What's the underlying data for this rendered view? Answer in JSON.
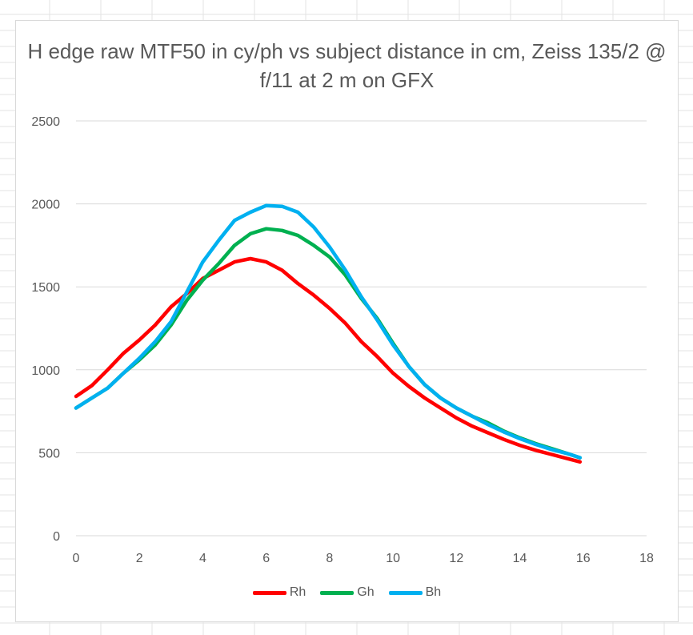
{
  "chart_data": {
    "type": "line",
    "title": "H edge raw MTF50 in cy/ph vs subject distance in cm, Zeiss 135/2 @ f/11 at 2 m on GFX",
    "xlabel": "",
    "ylabel": "",
    "xlim": [
      0,
      18
    ],
    "ylim": [
      0,
      2500
    ],
    "xticks": [
      0,
      2,
      4,
      6,
      8,
      10,
      12,
      14,
      16,
      18
    ],
    "yticks": [
      0,
      500,
      1000,
      1500,
      2000,
      2500
    ],
    "grid": "horizontal",
    "legend": "bottom",
    "series": [
      {
        "name": "Rh",
        "color": "#ff0000",
        "x": [
          0,
          0.5,
          1,
          1.5,
          2,
          2.5,
          3,
          3.5,
          4,
          4.5,
          5,
          5.5,
          6,
          6.5,
          7,
          7.5,
          8,
          8.5,
          9,
          9.5,
          10,
          10.5,
          11,
          11.5,
          12,
          12.5,
          13,
          13.5,
          14,
          14.5,
          15,
          15.5,
          15.9
        ],
        "y": [
          840,
          905,
          1000,
          1100,
          1180,
          1270,
          1380,
          1460,
          1550,
          1600,
          1650,
          1670,
          1650,
          1600,
          1520,
          1450,
          1370,
          1280,
          1170,
          1080,
          980,
          900,
          830,
          770,
          710,
          660,
          620,
          580,
          545,
          515,
          490,
          465,
          445
        ]
      },
      {
        "name": "Gh",
        "color": "#00b050",
        "x": [
          0,
          0.5,
          1,
          1.5,
          2,
          2.5,
          3,
          3.5,
          4,
          4.5,
          5,
          5.5,
          6,
          6.5,
          7,
          7.5,
          8,
          8.5,
          9,
          9.5,
          10,
          10.5,
          11,
          11.5,
          12,
          12.5,
          13,
          13.5,
          14,
          14.5,
          15,
          15.5,
          15.9
        ],
        "y": [
          770,
          830,
          890,
          980,
          1060,
          1150,
          1270,
          1420,
          1540,
          1640,
          1750,
          1820,
          1850,
          1840,
          1810,
          1750,
          1680,
          1570,
          1430,
          1310,
          1160,
          1020,
          910,
          830,
          770,
          720,
          680,
          630,
          590,
          555,
          525,
          495,
          470
        ]
      },
      {
        "name": "Bh",
        "color": "#00b0f0",
        "x": [
          0,
          0.5,
          1,
          1.5,
          2,
          2.5,
          3,
          3.5,
          4,
          4.5,
          5,
          5.5,
          6,
          6.5,
          7,
          7.5,
          8,
          8.5,
          9,
          9.5,
          10,
          10.5,
          11,
          11.5,
          12,
          12.5,
          13,
          13.5,
          14,
          14.5,
          15,
          15.5,
          15.9
        ],
        "y": [
          770,
          830,
          890,
          980,
          1070,
          1170,
          1290,
          1470,
          1650,
          1780,
          1900,
          1950,
          1990,
          1985,
          1950,
          1860,
          1740,
          1600,
          1440,
          1300,
          1150,
          1020,
          910,
          830,
          770,
          720,
          670,
          625,
          585,
          550,
          520,
          495,
          470
        ]
      }
    ]
  }
}
